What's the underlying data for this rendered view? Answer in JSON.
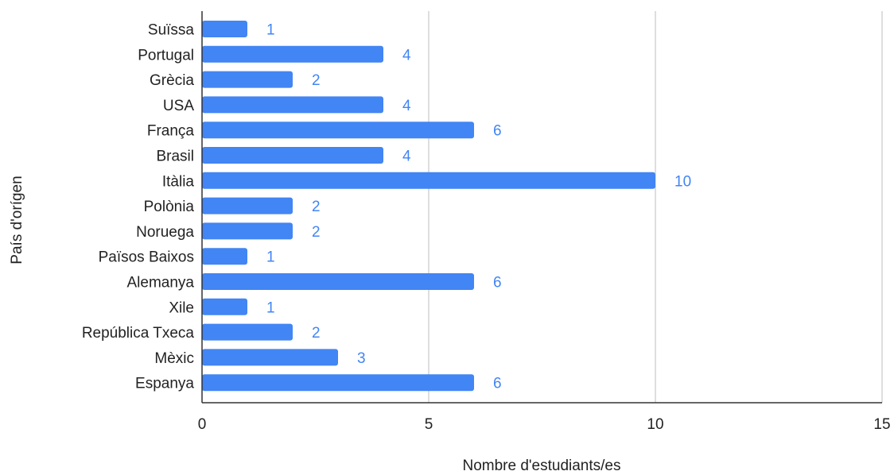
{
  "chart_data": {
    "type": "bar",
    "orientation": "horizontal",
    "title": "",
    "xlabel": "Nombre d'estudiants/es",
    "ylabel": "País d'orígen",
    "categories": [
      "Suïssa",
      "Portugal",
      "Grècia",
      "USA",
      "França",
      "Brasil",
      "Itàlia",
      "Polònia",
      "Noruega",
      "Països Baixos",
      "Alemanya",
      "Xile",
      "República Txeca",
      "Mèxic",
      "Espanya"
    ],
    "values": [
      1,
      4,
      2,
      4,
      6,
      4,
      10,
      2,
      2,
      1,
      6,
      1,
      2,
      3,
      6
    ],
    "xlim": [
      0,
      15
    ],
    "xticks": [
      0,
      5,
      10,
      15
    ],
    "grid": true,
    "legend": "none",
    "bar_color": "#4285f4",
    "label_color": "#4285f4",
    "grid_color": "#cccccc",
    "axis_color": "#333333"
  }
}
